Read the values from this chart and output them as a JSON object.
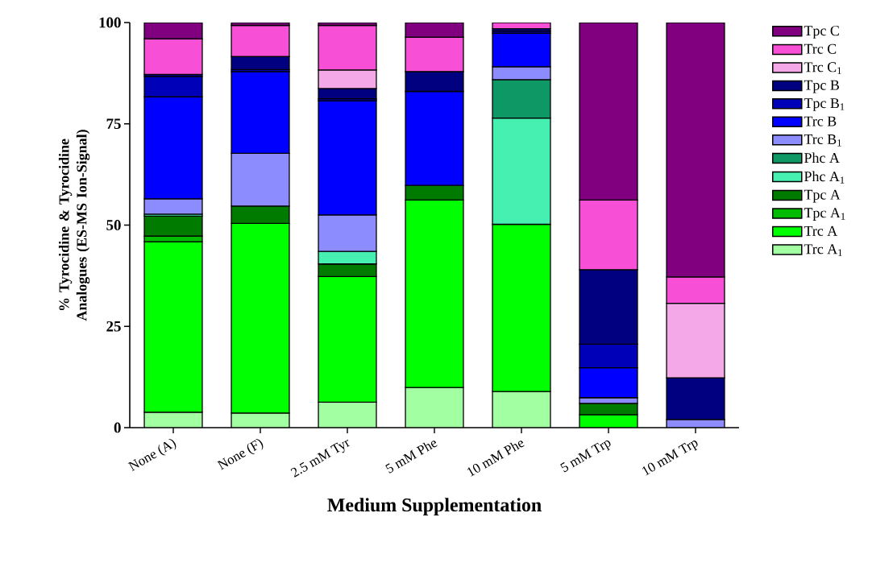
{
  "chart_data": {
    "type": "bar",
    "stacked": true,
    "xlabel": "Medium Supplementation",
    "ylabel": "% Tyrocidine & Tyrocidine Analogues (ES-MS Ion-Signal)",
    "categories": [
      "None (A)",
      "None (F)",
      "2.5 mM Tyr",
      "5 mM Phe",
      "10 mM Phe",
      "5 mM Trp",
      "10 mM Trp"
    ],
    "ylim": [
      0,
      100
    ],
    "yticks": [
      0,
      25,
      50,
      75,
      100
    ],
    "grid": false,
    "legend": "right",
    "series": [
      {
        "name": "Trc A$_{1}$",
        "color": "#a2ffa2",
        "values": [
          3.8,
          3.6,
          6.3,
          9.9,
          8.9,
          null,
          null
        ]
      },
      {
        "name": "Trc A",
        "color": "#00ff00",
        "values": [
          42.1,
          46.8,
          31.0,
          46.3,
          41.3,
          3.2,
          null
        ]
      },
      {
        "name": "Tpc A$_{1}$",
        "color": "#00bb00",
        "values": [
          1.4,
          null,
          null,
          null,
          null,
          null,
          null
        ]
      },
      {
        "name": "Tpc A",
        "color": "#007b00",
        "values": [
          4.9,
          4.3,
          3.1,
          3.6,
          null,
          2.8,
          null
        ]
      },
      {
        "name": "Phc A$_{1}$",
        "color": "#45f0b0",
        "values": [
          0.5,
          null,
          3.1,
          null,
          26.2,
          null,
          null
        ]
      },
      {
        "name": "Phc A",
        "color": "#0e9866",
        "values": [
          null,
          null,
          null,
          null,
          9.5,
          null,
          null
        ]
      },
      {
        "name": "Trc B$_{1}$",
        "color": "#8c8cff",
        "values": [
          3.8,
          13.0,
          9.0,
          null,
          3.2,
          1.4,
          2.0
        ]
      },
      {
        "name": "Trc B",
        "color": "#0000ff",
        "values": [
          25.2,
          20.2,
          28.2,
          23.2,
          8.3,
          7.4,
          null
        ]
      },
      {
        "name": "Tpc B$_{1}$",
        "color": "#0000b8",
        "values": [
          5.0,
          0.5,
          0.5,
          null,
          0.5,
          5.8,
          null
        ]
      },
      {
        "name": "Tpc B",
        "color": "#000080",
        "values": [
          0.5,
          3.2,
          2.5,
          4.9,
          0.6,
          18.4,
          10.3
        ]
      },
      {
        "name": "Trc C$_{1}$",
        "color": "#f5a8e8",
        "values": [
          null,
          null,
          4.6,
          null,
          null,
          null,
          18.4
        ]
      },
      {
        "name": "Trc C",
        "color": "#f74fd6",
        "values": [
          8.8,
          7.7,
          11.0,
          8.5,
          1.5,
          17.2,
          6.5
        ]
      },
      {
        "name": "Tpc C",
        "color": "#800080",
        "values": [
          4.0,
          0.7,
          0.7,
          3.6,
          null,
          43.8,
          62.8
        ]
      }
    ]
  }
}
